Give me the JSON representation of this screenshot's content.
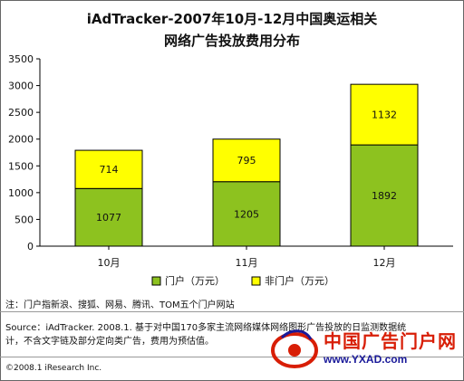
{
  "title_line1": "iAdTracker-2007年10月-12月中国奥运相关",
  "title_line2": "网络广告投放费用分布",
  "chart_data": {
    "type": "bar",
    "stacked": true,
    "categories": [
      "10月",
      "11月",
      "12月"
    ],
    "series": [
      {
        "name": "门户（万元）",
        "values": [
          1077,
          1205,
          1892
        ],
        "color": "#8dc21f"
      },
      {
        "name": "非门户（万元）",
        "values": [
          714,
          795,
          1132
        ],
        "color": "#ffff00"
      }
    ],
    "ylim": [
      0,
      3500
    ],
    "yticks": [
      0,
      500,
      1000,
      1500,
      2000,
      2500,
      3000,
      3500
    ],
    "grid": false,
    "legend": "bottom"
  },
  "note": "注：门户指新浪、搜狐、网易、腾讯、TOM五个门户网站",
  "source": "Source：iAdTracker. 2008.1. 基于对中国170多家主流网络媒体网络图形广告投放的日监测数据统计，不含文字链及部分定向类广告，费用为预估值。",
  "copyright": "©2008.1 iResearch Inc.",
  "watermark": {
    "title": "中国广告门户网",
    "url": "www.YXAD.com"
  }
}
